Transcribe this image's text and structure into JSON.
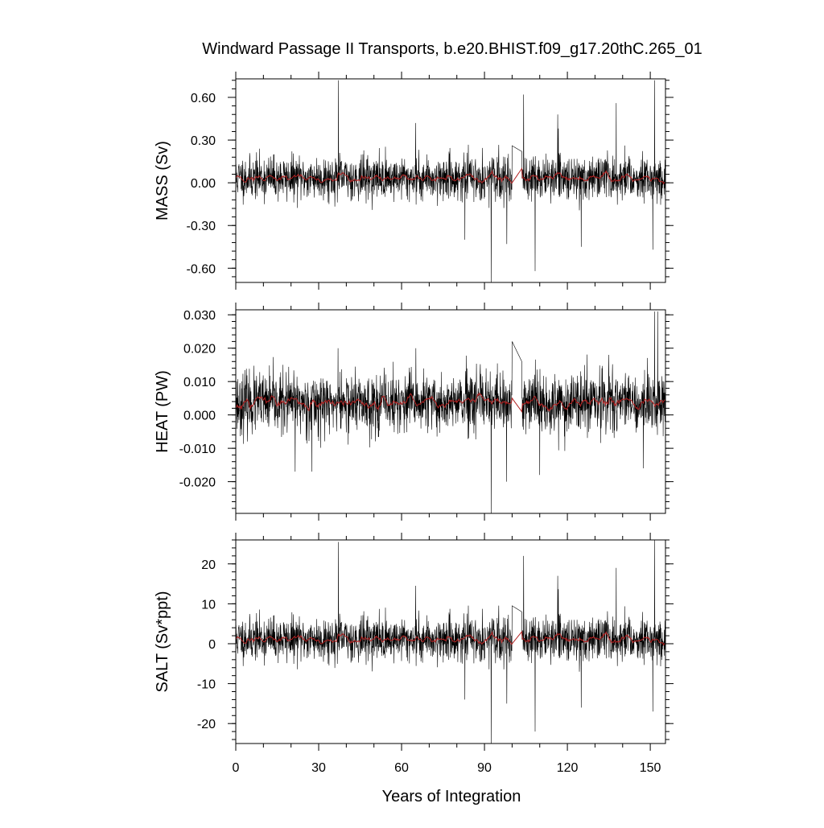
{
  "title": "Windward Passage II Transports, b.e20.BHIST.f09_g17.20thC.265_01",
  "x_axis": {
    "label": "Years of Integration",
    "range": [
      0,
      155.5
    ],
    "ticks": [
      0,
      30,
      60,
      90,
      120,
      150
    ],
    "tick_labels": [
      "0",
      "30",
      "60",
      "90",
      "120",
      "150"
    ],
    "minor_step": 10
  },
  "chart_data": [
    {
      "type": "line",
      "ylabel": "MASS (Sv)",
      "ylim": [
        -0.7,
        0.73
      ],
      "yticks": [
        0.6,
        0.3,
        0.0,
        -0.3,
        -0.6
      ],
      "ytick_labels": [
        "0.60",
        "0.30",
        "0.00",
        "-0.30",
        "-0.60"
      ],
      "y_minor_step": 0.06,
      "series": [
        {
          "color": "#000000",
          "kind": "monthly"
        },
        {
          "color": "#b22222",
          "kind": "smoothed"
        }
      ],
      "noise": {
        "mean": 0.035,
        "sd": 0.075,
        "seed": 11
      },
      "spikes": [
        [
          37.2,
          0.72
        ],
        [
          65.1,
          0.42
        ],
        [
          92.4,
          -0.7
        ],
        [
          98.1,
          -0.43
        ],
        [
          104.2,
          0.62
        ],
        [
          108.3,
          -0.62
        ],
        [
          116.5,
          0.48
        ],
        [
          137.7,
          0.56
        ],
        [
          151.6,
          0.72
        ],
        [
          150.9,
          -0.47
        ],
        [
          82.9,
          -0.4
        ],
        [
          125.0,
          -0.45
        ]
      ],
      "gap": {
        "from": 100.0,
        "to": 103.5,
        "y_start": 0.26,
        "y_end": 0.22
      },
      "smooth_gap": {
        "from": 100.0,
        "to": 103.5,
        "y_start": 0.0,
        "y_end": 0.1
      }
    },
    {
      "type": "line",
      "ylabel": "HEAT (PW)",
      "ylim": [
        -0.0295,
        0.0315
      ],
      "yticks": [
        0.03,
        0.02,
        0.01,
        0.0,
        -0.01,
        -0.02
      ],
      "ytick_labels": [
        "0.030",
        "0.020",
        "0.010",
        "0.000",
        "-0.010",
        "-0.020"
      ],
      "y_minor_step": 0.002,
      "series": [
        {
          "color": "#000000",
          "kind": "monthly"
        },
        {
          "color": "#b22222",
          "kind": "smoothed"
        }
      ],
      "noise": {
        "mean": 0.0035,
        "sd": 0.0045,
        "seed": 23
      },
      "spikes": [
        [
          92.4,
          -0.0295
        ],
        [
          98.0,
          -0.02
        ],
        [
          100.5,
          0.022
        ],
        [
          151.6,
          0.031
        ],
        [
          152.7,
          0.031
        ],
        [
          37.0,
          0.02
        ],
        [
          65.2,
          0.02
        ],
        [
          21.5,
          -0.017
        ],
        [
          27.5,
          -0.017
        ],
        [
          110.0,
          -0.018
        ],
        [
          135.0,
          0.018
        ],
        [
          147.5,
          -0.016
        ]
      ],
      "gap": {
        "from": 100.0,
        "to": 103.5,
        "y_start": 0.022,
        "y_end": 0.016
      },
      "smooth_gap": {
        "from": 100.0,
        "to": 103.5,
        "y_start": 0.005,
        "y_end": 0.001
      }
    },
    {
      "type": "line",
      "ylabel": "SALT (Sv*ppt)",
      "ylim": [
        -25,
        26
      ],
      "yticks": [
        20,
        10,
        0,
        -10,
        -20
      ],
      "ytick_labels": [
        "20",
        "10",
        "0",
        "-10",
        "-20"
      ],
      "y_minor_step": 2,
      "series": [
        {
          "color": "#000000",
          "kind": "monthly"
        },
        {
          "color": "#b22222",
          "kind": "smoothed"
        }
      ],
      "noise": {
        "mean": 1.2,
        "sd": 2.7,
        "seed": 11
      },
      "spikes": [
        [
          37.2,
          25.5
        ],
        [
          65.1,
          14.5
        ],
        [
          92.4,
          -25
        ],
        [
          98.1,
          -15
        ],
        [
          104.2,
          22
        ],
        [
          108.3,
          -22
        ],
        [
          116.5,
          17
        ],
        [
          137.7,
          19
        ],
        [
          151.6,
          26
        ],
        [
          150.9,
          -17
        ],
        [
          82.9,
          -14
        ],
        [
          125.0,
          -16
        ]
      ],
      "gap": {
        "from": 100.0,
        "to": 103.5,
        "y_start": 9.5,
        "y_end": 8.0
      },
      "smooth_gap": {
        "from": 100.0,
        "to": 103.5,
        "y_start": 0.0,
        "y_end": 3.0
      }
    }
  ]
}
